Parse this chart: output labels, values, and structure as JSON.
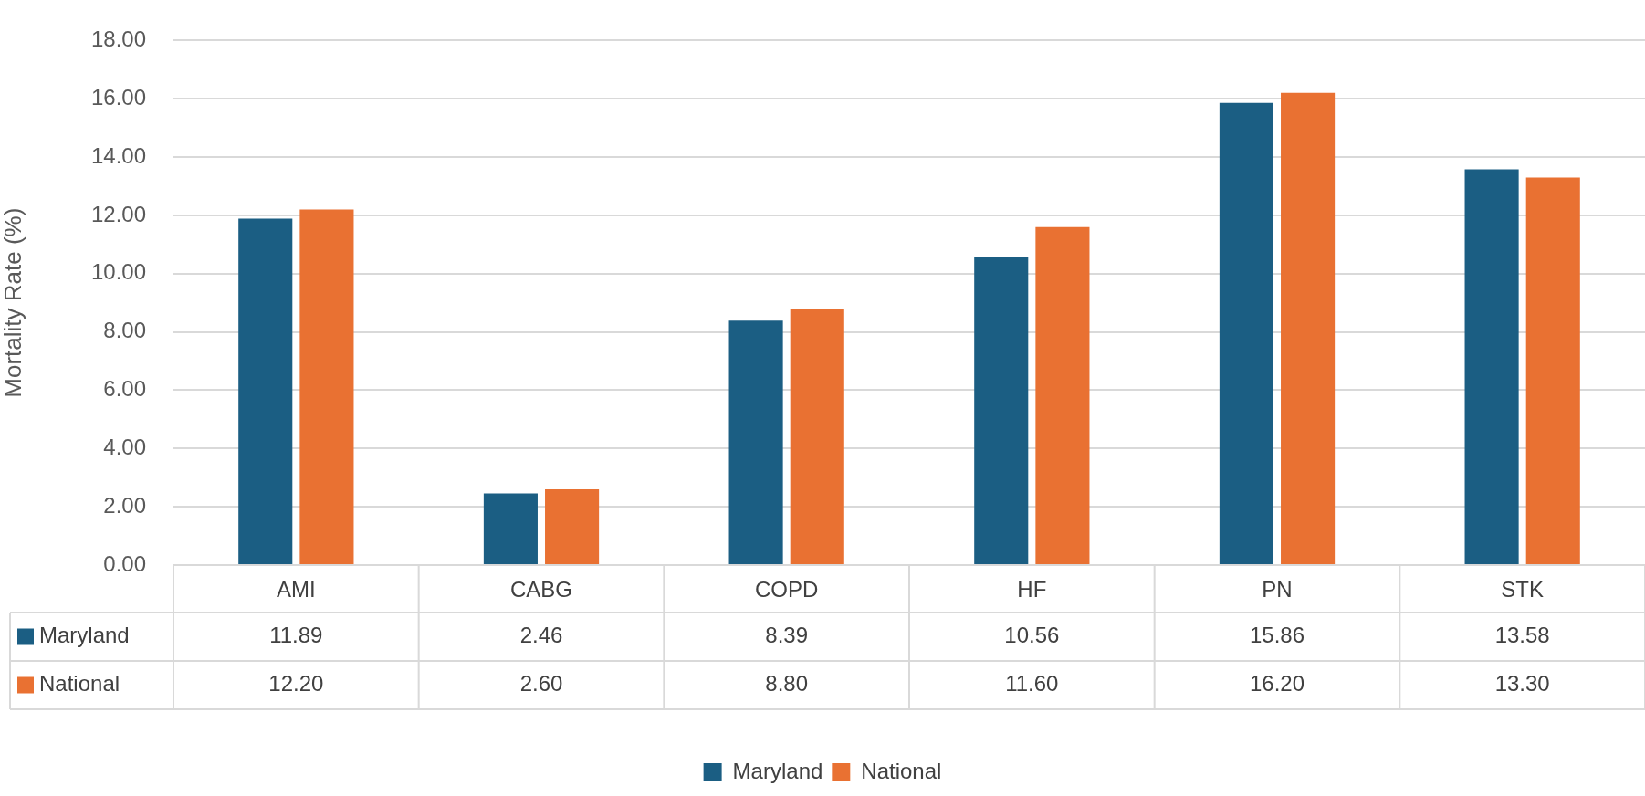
{
  "chart_data": {
    "type": "bar",
    "ylabel": "Mortality Rate (%)",
    "categories": [
      "AMI",
      "CABG",
      "COPD",
      "HF",
      "PN",
      "STK"
    ],
    "series": [
      {
        "name": "Maryland",
        "color": "#1b5e83",
        "values": [
          11.89,
          2.46,
          8.39,
          10.56,
          15.86,
          13.58
        ],
        "value_labels": [
          "11.89",
          "2.46",
          "8.39",
          "10.56",
          "15.86",
          "13.58"
        ]
      },
      {
        "name": "National",
        "color": "#e97132",
        "values": [
          12.2,
          2.6,
          8.8,
          11.6,
          16.2,
          13.3
        ],
        "value_labels": [
          "12.20",
          "2.60",
          "8.80",
          "11.60",
          "16.20",
          "13.30"
        ]
      }
    ],
    "ylim": [
      0,
      18
    ],
    "yticks": [
      {
        "value": 0,
        "label": "0.00"
      },
      {
        "value": 2,
        "label": "2.00"
      },
      {
        "value": 4,
        "label": "4.00"
      },
      {
        "value": 6,
        "label": "6.00"
      },
      {
        "value": 8,
        "label": "8.00"
      },
      {
        "value": 10,
        "label": "10.00"
      },
      {
        "value": 12,
        "label": "12.00"
      },
      {
        "value": 14,
        "label": "14.00"
      },
      {
        "value": 16,
        "label": "16.00"
      },
      {
        "value": 18,
        "label": "18.00"
      }
    ],
    "grid": "y",
    "legend": "bottom"
  }
}
